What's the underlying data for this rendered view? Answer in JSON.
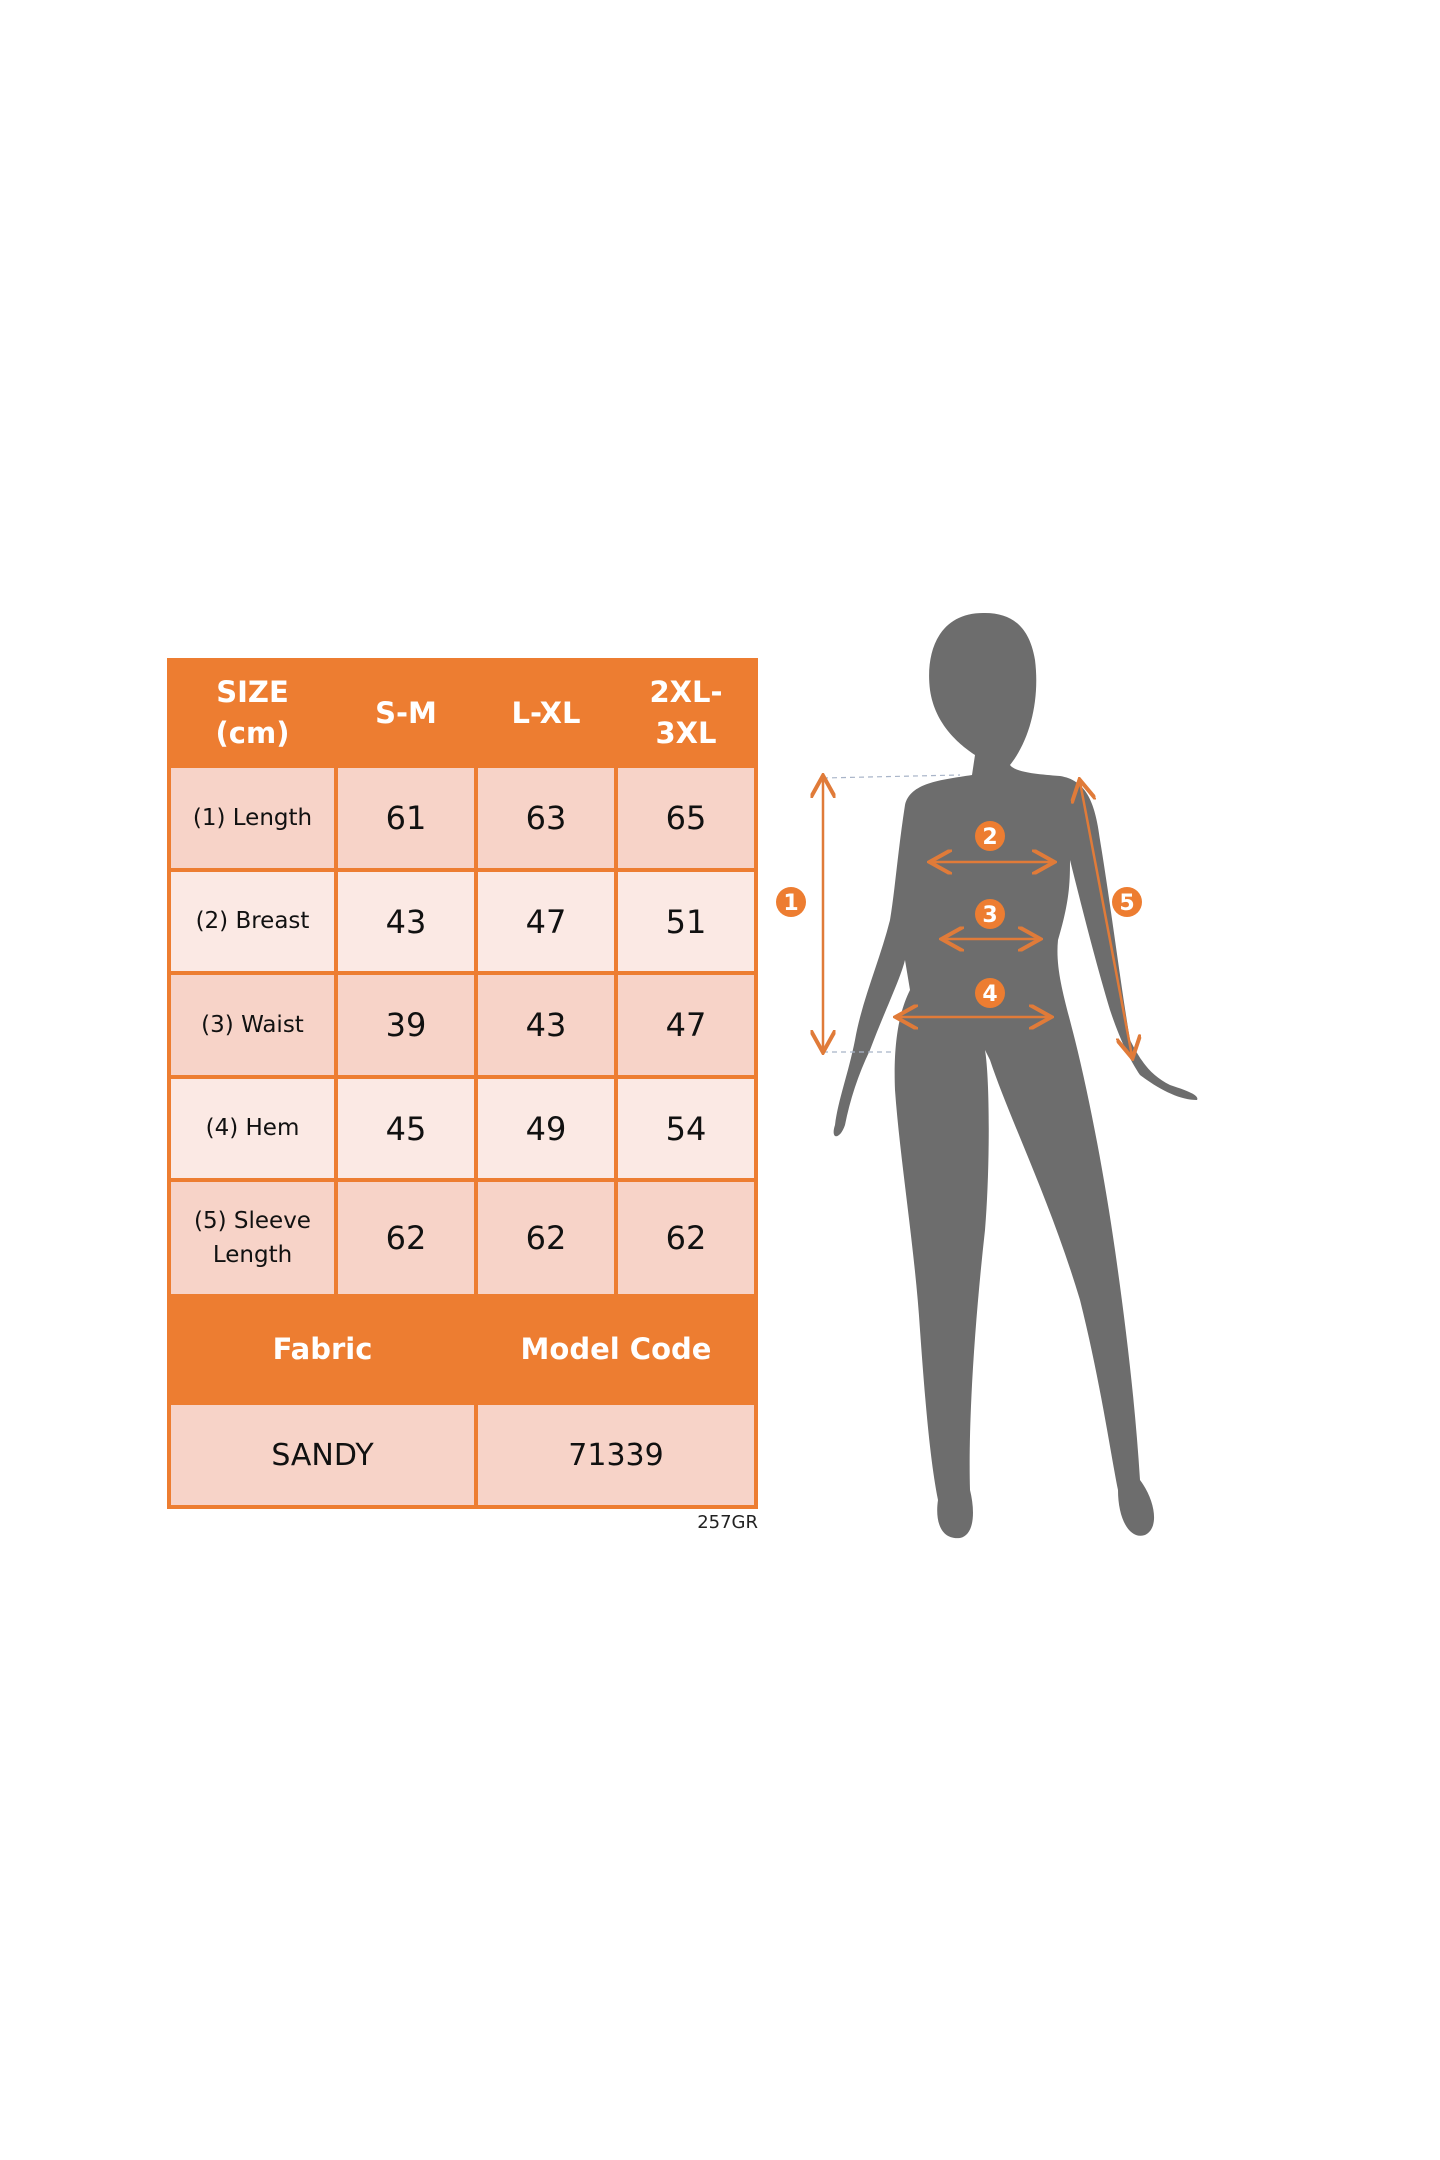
{
  "table": {
    "header": [
      "SIZE (cm)",
      "S-M",
      "L-XL",
      "2XL-3XL"
    ],
    "header_lines": [
      [
        "SIZE",
        "(cm)"
      ],
      [
        "S-M"
      ],
      [
        "L-XL"
      ],
      [
        "2XL-",
        "3XL"
      ]
    ],
    "rows": [
      {
        "label": "(1) Length",
        "values": [
          "61",
          "63",
          "65"
        ]
      },
      {
        "label": "(2) Breast",
        "values": [
          "43",
          "47",
          "51"
        ]
      },
      {
        "label": "(3) Waist",
        "values": [
          "39",
          "43",
          "47"
        ]
      },
      {
        "label": "(4) Hem",
        "values": [
          "45",
          "49",
          "54"
        ]
      },
      {
        "label_lines": [
          "(5) Sleeve",
          "Length"
        ],
        "values": [
          "62",
          "62",
          "62"
        ]
      }
    ],
    "footer_headers": [
      "Fabric",
      "Model Code"
    ],
    "footer_values": [
      "SANDY",
      "71339"
    ]
  },
  "code": "257GR",
  "figure": {
    "icon": "woman-silhouette-icon",
    "markers": [
      "1",
      "2",
      "3",
      "4",
      "5"
    ]
  },
  "colors": {
    "accent": "#ed7d31",
    "cell_dark": "#f7d3c8",
    "cell_light": "#fbe9e4",
    "silhouette": "#6d6d6d"
  }
}
